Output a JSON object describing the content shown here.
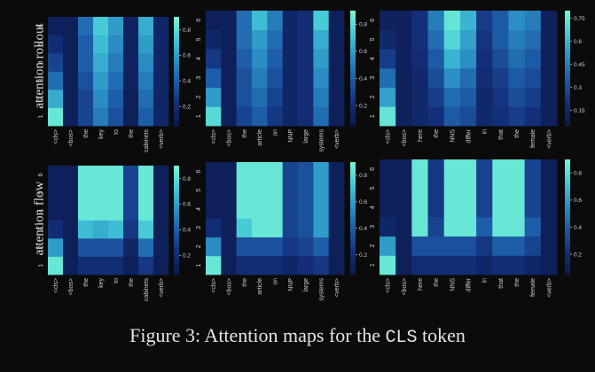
{
  "caption": {
    "prefix": "Figure 3: Attention maps for the",
    "token": "CLS",
    "suffix": "token"
  },
  "rows": [
    "attention rollout",
    "attention flow"
  ],
  "colors": [
    "#0b1a4d",
    "#142f7a",
    "#1d5aa6",
    "#2b8fc4",
    "#42c6d6",
    "#78f3d6"
  ],
  "chart_data": [
    {
      "type": "heatmap",
      "row": "attention rollout",
      "x": [
        "<cls>",
        "<bos>",
        "the",
        "key",
        "to",
        "the",
        "cabinets",
        "<verb>"
      ],
      "y": [
        1,
        2,
        3,
        4,
        5,
        6
      ],
      "colorbar_ticks": [
        0.2,
        0.4,
        0.6,
        0.8
      ],
      "vmin": 0.05,
      "vmax": 0.9,
      "values": [
        [
          0.85,
          0.1,
          0.3,
          0.5,
          0.35,
          0.1,
          0.4,
          0.15
        ],
        [
          0.65,
          0.1,
          0.3,
          0.55,
          0.4,
          0.1,
          0.45,
          0.15
        ],
        [
          0.45,
          0.1,
          0.35,
          0.6,
          0.45,
          0.12,
          0.5,
          0.15
        ],
        [
          0.3,
          0.1,
          0.4,
          0.65,
          0.5,
          0.12,
          0.55,
          0.15
        ],
        [
          0.2,
          0.1,
          0.4,
          0.7,
          0.55,
          0.12,
          0.6,
          0.15
        ],
        [
          0.1,
          0.1,
          0.45,
          0.75,
          0.6,
          0.12,
          0.65,
          0.15
        ]
      ]
    },
    {
      "type": "heatmap",
      "row": "attention rollout",
      "x": [
        "<cls>",
        "<bos>",
        "the",
        "article",
        "on",
        "NNP",
        "large",
        "systems",
        "<verb>"
      ],
      "y": [
        1,
        2,
        3,
        4,
        5,
        6
      ],
      "colorbar_ticks": [
        0.2,
        0.4,
        0.6,
        0.8
      ],
      "vmin": 0.05,
      "vmax": 0.9,
      "values": [
        [
          0.8,
          0.1,
          0.3,
          0.4,
          0.25,
          0.15,
          0.2,
          0.45,
          0.1
        ],
        [
          0.6,
          0.1,
          0.35,
          0.45,
          0.3,
          0.15,
          0.2,
          0.5,
          0.1
        ],
        [
          0.4,
          0.1,
          0.35,
          0.5,
          0.35,
          0.15,
          0.2,
          0.55,
          0.1
        ],
        [
          0.25,
          0.1,
          0.4,
          0.55,
          0.4,
          0.15,
          0.2,
          0.6,
          0.1
        ],
        [
          0.15,
          0.1,
          0.45,
          0.6,
          0.45,
          0.15,
          0.2,
          0.65,
          0.1
        ],
        [
          0.1,
          0.1,
          0.45,
          0.7,
          0.5,
          0.15,
          0.2,
          0.75,
          0.1
        ]
      ]
    },
    {
      "type": "heatmap",
      "row": "attention rollout",
      "x": [
        "<cls>",
        "<bos>",
        "here",
        "the",
        "NNS",
        "differ",
        "in",
        "that",
        "the",
        "female",
        "<verb>"
      ],
      "y": [
        1,
        2,
        3,
        4,
        5,
        6
      ],
      "colorbar_ticks": [
        0.15,
        0.3,
        0.45,
        0.6,
        0.75
      ],
      "vmin": 0.05,
      "vmax": 0.8,
      "values": [
        [
          0.75,
          0.1,
          0.15,
          0.2,
          0.35,
          0.3,
          0.15,
          0.2,
          0.25,
          0.2,
          0.1
        ],
        [
          0.55,
          0.1,
          0.15,
          0.25,
          0.4,
          0.35,
          0.15,
          0.22,
          0.3,
          0.25,
          0.1
        ],
        [
          0.4,
          0.1,
          0.15,
          0.3,
          0.5,
          0.4,
          0.18,
          0.25,
          0.35,
          0.3,
          0.1
        ],
        [
          0.25,
          0.1,
          0.18,
          0.35,
          0.6,
          0.5,
          0.2,
          0.3,
          0.4,
          0.35,
          0.1
        ],
        [
          0.15,
          0.1,
          0.2,
          0.4,
          0.7,
          0.55,
          0.22,
          0.35,
          0.45,
          0.4,
          0.1
        ],
        [
          0.1,
          0.1,
          0.2,
          0.45,
          0.75,
          0.6,
          0.25,
          0.35,
          0.5,
          0.45,
          0.1
        ]
      ]
    },
    {
      "type": "heatmap",
      "row": "attention flow",
      "x": [
        "<cls>",
        "<bos>",
        "the",
        "key",
        "to",
        "the",
        "cabinets",
        "<verb>"
      ],
      "y": [
        1,
        2,
        3,
        4,
        5,
        6
      ],
      "colorbar_ticks": [
        0.2,
        0.4,
        0.6,
        0.8
      ],
      "vmin": 0.05,
      "vmax": 0.9,
      "values": [
        [
          0.85,
          0.1,
          0.2,
          0.2,
          0.2,
          0.1,
          0.25,
          0.1
        ],
        [
          0.6,
          0.1,
          0.35,
          0.35,
          0.35,
          0.15,
          0.45,
          0.1
        ],
        [
          0.2,
          0.1,
          0.7,
          0.65,
          0.7,
          0.25,
          0.75,
          0.1
        ],
        [
          0.1,
          0.1,
          0.85,
          0.85,
          0.85,
          0.3,
          0.85,
          0.1
        ],
        [
          0.1,
          0.1,
          0.85,
          0.85,
          0.85,
          0.3,
          0.85,
          0.1
        ],
        [
          0.1,
          0.1,
          0.85,
          0.85,
          0.85,
          0.3,
          0.85,
          0.1
        ]
      ]
    },
    {
      "type": "heatmap",
      "row": "attention flow",
      "x": [
        "<cls>",
        "<bos>",
        "the",
        "article",
        "on",
        "NNP",
        "large",
        "systems",
        "<verb>"
      ],
      "y": [
        1,
        2,
        3,
        4,
        5,
        6
      ],
      "colorbar_ticks": [
        0.2,
        0.4,
        0.6,
        0.8
      ],
      "vmin": 0.05,
      "vmax": 0.9,
      "values": [
        [
          0.85,
          0.1,
          0.2,
          0.2,
          0.2,
          0.15,
          0.2,
          0.25,
          0.1
        ],
        [
          0.55,
          0.1,
          0.35,
          0.35,
          0.35,
          0.25,
          0.3,
          0.4,
          0.1
        ],
        [
          0.2,
          0.1,
          0.75,
          0.85,
          0.85,
          0.3,
          0.35,
          0.6,
          0.1
        ],
        [
          0.1,
          0.1,
          0.85,
          0.85,
          0.85,
          0.3,
          0.35,
          0.6,
          0.1
        ],
        [
          0.1,
          0.1,
          0.85,
          0.85,
          0.85,
          0.3,
          0.35,
          0.6,
          0.1
        ],
        [
          0.1,
          0.1,
          0.85,
          0.85,
          0.85,
          0.3,
          0.35,
          0.6,
          0.1
        ]
      ]
    },
    {
      "type": "heatmap",
      "row": "attention flow",
      "x": [
        "<cls>",
        "<bos>",
        "here",
        "the",
        "NNS",
        "differ",
        "in",
        "that",
        "the",
        "female",
        "<verb>"
      ],
      "y": [
        1,
        2,
        3,
        4,
        5,
        6
      ],
      "colorbar_ticks": [
        0.2,
        0.4,
        0.6,
        0.8
      ],
      "vmin": 0.05,
      "vmax": 0.9,
      "values": [
        [
          0.85,
          0.1,
          0.2,
          0.2,
          0.2,
          0.2,
          0.15,
          0.2,
          0.2,
          0.15,
          0.1
        ],
        [
          0.6,
          0.1,
          0.35,
          0.35,
          0.35,
          0.35,
          0.25,
          0.4,
          0.4,
          0.3,
          0.1
        ],
        [
          0.15,
          0.1,
          0.85,
          0.3,
          0.85,
          0.85,
          0.4,
          0.85,
          0.85,
          0.4,
          0.1
        ],
        [
          0.1,
          0.1,
          0.85,
          0.25,
          0.85,
          0.85,
          0.3,
          0.85,
          0.85,
          0.3,
          0.1
        ],
        [
          0.1,
          0.1,
          0.85,
          0.25,
          0.85,
          0.85,
          0.3,
          0.85,
          0.85,
          0.3,
          0.1
        ],
        [
          0.1,
          0.1,
          0.85,
          0.25,
          0.85,
          0.85,
          0.3,
          0.85,
          0.85,
          0.3,
          0.1
        ]
      ]
    }
  ]
}
